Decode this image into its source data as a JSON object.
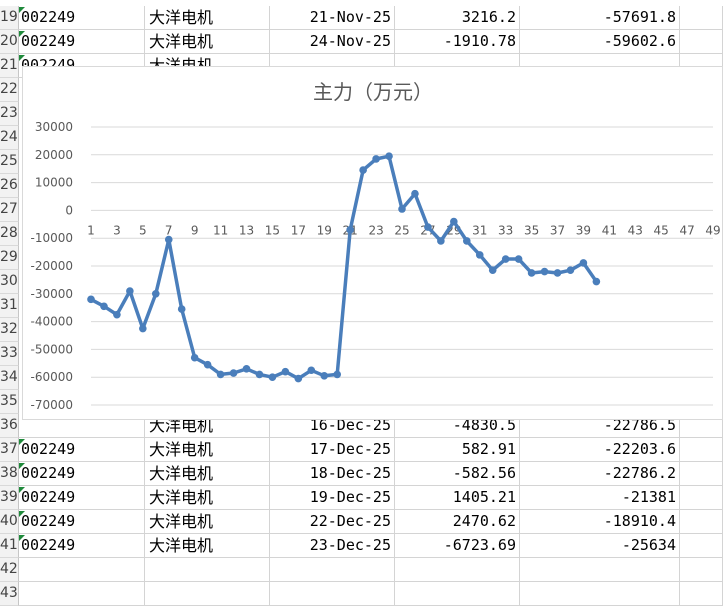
{
  "sheet": {
    "top_rows": [
      {
        "row": "19",
        "code": "002249",
        "name": "大洋电机",
        "date": "21-Nov-25",
        "value": "3216.2",
        "cum": "-57691.8"
      },
      {
        "row": "20",
        "code": "002249",
        "name": "大洋电机",
        "date": "24-Nov-25",
        "value": "-1910.78",
        "cum": "-59602.6"
      },
      {
        "row": "21",
        "code": "002249",
        "name": "大洋电机",
        "date": "",
        "value": "",
        "cum": ""
      }
    ],
    "hidden_row_labels": [
      "22",
      "23",
      "24",
      "25",
      "26",
      "27",
      "28",
      "29",
      "30",
      "31",
      "32",
      "33",
      "34",
      "35"
    ],
    "bottom_rows": [
      {
        "row": "36",
        "code": "",
        "name": "大洋电机",
        "date": "16-Dec-25",
        "value": "-4830.5",
        "cum": "-22786.5"
      },
      {
        "row": "37",
        "code": "002249",
        "name": "大洋电机",
        "date": "17-Dec-25",
        "value": "582.91",
        "cum": "-22203.6"
      },
      {
        "row": "38",
        "code": "002249",
        "name": "大洋电机",
        "date": "18-Dec-25",
        "value": "-582.56",
        "cum": "-22786.2"
      },
      {
        "row": "39",
        "code": "002249",
        "name": "大洋电机",
        "date": "19-Dec-25",
        "value": "1405.21",
        "cum": "-21381"
      },
      {
        "row": "40",
        "code": "002249",
        "name": "大洋电机",
        "date": "22-Dec-25",
        "value": "2470.62",
        "cum": "-18910.4"
      },
      {
        "row": "41",
        "code": "002249",
        "name": "大洋电机",
        "date": "23-Dec-25",
        "value": "-6723.69",
        "cum": "-25634"
      },
      {
        "row": "42",
        "code": "",
        "name": "",
        "date": "",
        "value": "",
        "cum": ""
      },
      {
        "row": "43",
        "code": "",
        "name": "",
        "date": "",
        "value": "",
        "cum": ""
      }
    ]
  },
  "chart_data": {
    "type": "line",
    "title": "主力（万元）",
    "xlabel": "",
    "ylabel": "",
    "x": [
      1,
      2,
      3,
      4,
      5,
      6,
      7,
      8,
      9,
      10,
      11,
      12,
      13,
      14,
      15,
      16,
      17,
      18,
      19,
      20,
      21,
      22,
      23,
      24,
      25,
      26,
      27,
      28,
      29,
      30,
      31,
      32,
      33,
      34,
      35,
      36,
      37,
      38,
      39,
      40
    ],
    "x_ticks": [
      1,
      3,
      5,
      7,
      9,
      11,
      13,
      15,
      17,
      19,
      21,
      23,
      25,
      27,
      29,
      31,
      33,
      35,
      37,
      39,
      41,
      43,
      45,
      47,
      49
    ],
    "x_range": [
      1,
      49
    ],
    "y_ticks": [
      30000,
      20000,
      10000,
      0,
      -10000,
      -20000,
      -30000,
      -40000,
      -50000,
      -60000,
      -70000
    ],
    "ylim": [
      -70000,
      30000
    ],
    "series": [
      {
        "name": "",
        "color": "#4a7ebb",
        "values": [
          -32000,
          -34500,
          -37500,
          -29000,
          -42500,
          -30000,
          -10500,
          -35500,
          -53000,
          -55500,
          -59000,
          -58500,
          -57000,
          -59000,
          -60000,
          -58000,
          -60500,
          -57500,
          -59500,
          -59000,
          -7000,
          14500,
          18500,
          19500,
          500,
          6000,
          -6000,
          -11000,
          -4000,
          -11000,
          -16000,
          -21500,
          -17500,
          -17500,
          -22500,
          -22000,
          -22500,
          -21500,
          -18900,
          -25600
        ]
      }
    ],
    "grid": true,
    "legend": "none"
  }
}
